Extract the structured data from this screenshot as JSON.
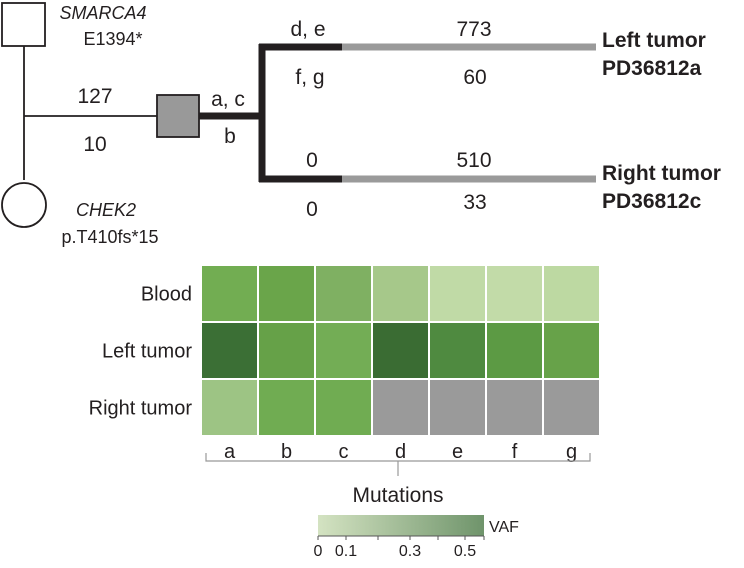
{
  "pedigree": {
    "father_gene": "SMARCA4",
    "father_variant": "E1394*",
    "mother_gene": "CHEK2",
    "mother_variant": "p.T410fs*15",
    "branch_top": "127",
    "branch_bottom": "10"
  },
  "tree": {
    "trunk_top": "a, c",
    "trunk_bottom": "b",
    "left_upper_top": "d, e",
    "left_upper_bottom": "f, g",
    "left_lower_top": "0",
    "left_lower_bottom": "0",
    "right_upper_top": "773",
    "right_upper_bottom": "60",
    "right_lower_top": "510",
    "right_lower_bottom": "33",
    "tumor_left_name": "Left tumor",
    "tumor_left_id": "PD36812a",
    "tumor_right_name": "Right tumor",
    "tumor_right_id": "PD36812c"
  },
  "heatmap": {
    "rows": [
      "Blood",
      "Left tumor",
      "Right tumor"
    ],
    "columns": [
      "a",
      "b",
      "c",
      "d",
      "e",
      "f",
      "g"
    ],
    "cells": [
      [
        "#72ad52",
        "#6aa54a",
        "#7fb062",
        "#a6c88a",
        "#c0daa6",
        "#c2dba8",
        "#bdd9a2"
      ],
      [
        "#3b6f35",
        "#66a148",
        "#73ad55",
        "#3a6c33",
        "#4f8a40",
        "#5c9a44",
        "#67a249"
      ],
      [
        "#9dc484",
        "#70ac52",
        "#70ac52",
        "#9a9a9a",
        "#9a9a9a",
        "#9a9a9a",
        "#9a9a9a"
      ]
    ],
    "x_label": "Mutations"
  },
  "legend": {
    "title": "VAF",
    "ticks": [
      "0",
      "0.1",
      "0.3",
      "0.5"
    ],
    "color_low": "#d4e3c2",
    "color_high": "#6f946b"
  }
}
